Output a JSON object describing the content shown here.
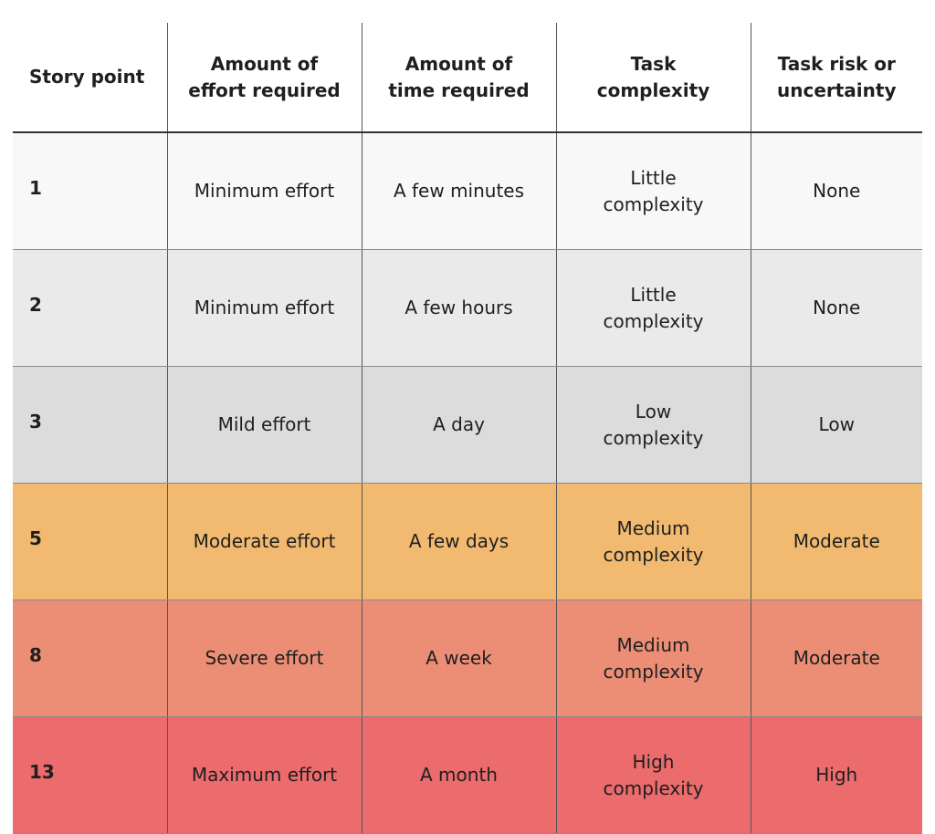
{
  "table": {
    "headers": [
      "Story point",
      "Amount of effort required",
      "Amount of time required",
      "Task complexity",
      "Task risk or uncertainty"
    ],
    "rows": [
      [
        "1",
        "Minimum effort",
        "A few minutes",
        "Little complexity",
        "None"
      ],
      [
        "2",
        "Minimum effort",
        "A few hours",
        "Little complexity",
        "None"
      ],
      [
        "3",
        "Mild effort",
        "A day",
        "Low complexity",
        "Low"
      ],
      [
        "5",
        "Moderate effort",
        "A few days",
        "Medium complexity",
        "Moderate"
      ],
      [
        "8",
        "Severe effort",
        "A week",
        "Medium complexity",
        "Moderate"
      ],
      [
        "13",
        "Maximum effort",
        "A month",
        "High complexity",
        "High"
      ]
    ]
  }
}
